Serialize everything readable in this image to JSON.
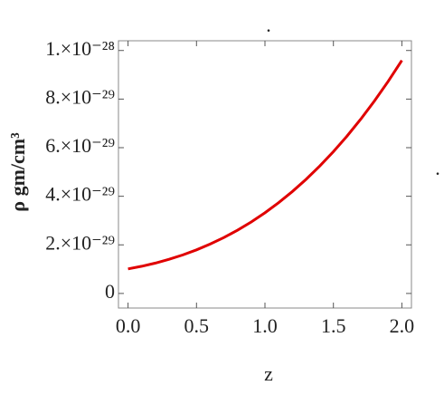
{
  "chart_data": {
    "type": "line",
    "annotations": [
      ".",
      "."
    ],
    "x_label": "z",
    "y_label": "ρ gm/cm³",
    "x": [
      0,
      0.1,
      0.2,
      0.3,
      0.4,
      0.5,
      0.6,
      0.7,
      0.8,
      0.9,
      1.0,
      1.1,
      1.2,
      1.3,
      1.4,
      1.5,
      1.6,
      1.7,
      1.8,
      1.9,
      2.0
    ],
    "values": [
      1.01e-29,
      1.119e-29,
      1.25e-29,
      1.405e-29,
      1.586e-29,
      1.794e-29,
      2.032e-29,
      2.301e-29,
      2.604e-29,
      2.943e-29,
      3.32e-29,
      3.736e-29,
      4.194e-29,
      4.695e-29,
      5.242e-29,
      5.836e-29,
      6.48e-29,
      7.175e-29,
      7.924e-29,
      8.729e-29,
      9.59e-29
    ],
    "color": "#e00000",
    "xlim": [
      -0.07,
      2.07
    ],
    "ylim": [
      -6e-30,
      1.04e-28
    ],
    "xticks": [
      {
        "value": 0,
        "label": "0.0"
      },
      0.5,
      {
        "value": 1,
        "label": "1.0"
      },
      1.5,
      {
        "value": 2,
        "label": "2.0"
      }
    ],
    "yticks": [
      0,
      {
        "value": 2e-29,
        "label": "2.×10⁻²⁹"
      },
      {
        "value": 4e-29,
        "label": "4.×10⁻²⁹"
      },
      {
        "value": 6e-29,
        "label": "6.×10⁻²⁹"
      },
      {
        "value": 8e-29,
        "label": "8.×10⁻²⁹"
      },
      {
        "value": 1e-28,
        "label": "1.×10⁻²⁸"
      }
    ]
  }
}
